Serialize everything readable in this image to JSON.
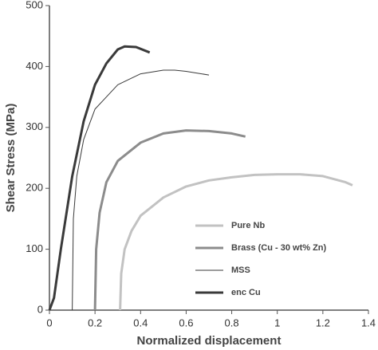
{
  "chart_data": {
    "type": "line",
    "xlabel": "Normalized displacement",
    "ylabel": "Shear Stress (MPa)",
    "xlim": [
      0,
      1.4
    ],
    "ylim": [
      0,
      500
    ],
    "xticks": [
      0,
      0.2,
      0.4,
      0.6,
      0.8,
      1,
      1.2,
      1.4
    ],
    "yticks": [
      0,
      100,
      200,
      300,
      400,
      500
    ],
    "grid": false,
    "legend": "lower right",
    "series": [
      {
        "name": "Pure Nb",
        "color": "#c2c2c2",
        "width": 3,
        "x": [
          0.31,
          0.315,
          0.33,
          0.36,
          0.4,
          0.5,
          0.6,
          0.7,
          0.8,
          0.9,
          1.0,
          1.1,
          1.2,
          1.3,
          1.33
        ],
        "values": [
          0,
          60,
          100,
          130,
          155,
          185,
          203,
          213,
          218,
          222,
          223,
          223,
          220,
          210,
          205
        ]
      },
      {
        "name": "Brass (Cu - 30 wt% Zn)",
        "color": "#8c8c8c",
        "width": 3,
        "x": [
          0.2,
          0.205,
          0.22,
          0.25,
          0.3,
          0.4,
          0.5,
          0.6,
          0.7,
          0.8,
          0.86
        ],
        "values": [
          0,
          100,
          160,
          210,
          245,
          275,
          290,
          295,
          294,
          290,
          285
        ]
      },
      {
        "name": "MSS",
        "color": "#3a3a3a",
        "width": 1,
        "x": [
          0.1,
          0.105,
          0.12,
          0.15,
          0.2,
          0.3,
          0.4,
          0.5,
          0.55,
          0.6,
          0.7
        ],
        "values": [
          0,
          150,
          220,
          280,
          330,
          370,
          388,
          394,
          394,
          392,
          386
        ]
      },
      {
        "name": "enc Cu",
        "color": "#3a3a3a",
        "width": 3,
        "x": [
          0,
          0.02,
          0.05,
          0.1,
          0.15,
          0.2,
          0.25,
          0.3,
          0.33,
          0.38,
          0.44
        ],
        "values": [
          0,
          20,
          100,
          220,
          310,
          370,
          405,
          428,
          433,
          432,
          423
        ]
      }
    ]
  }
}
